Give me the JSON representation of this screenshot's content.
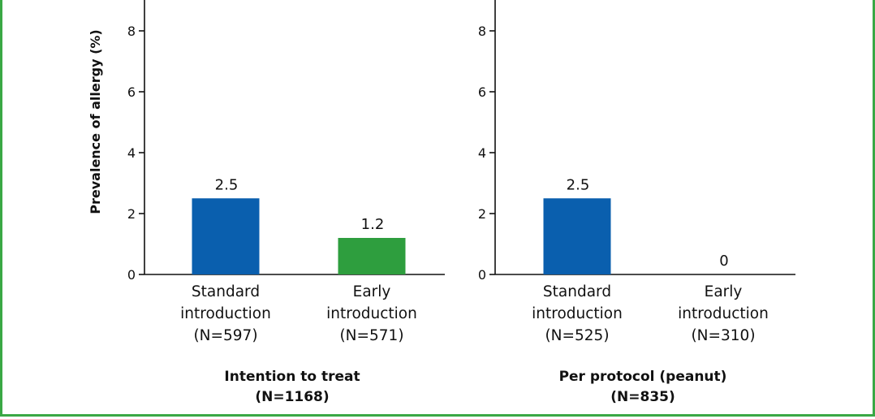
{
  "colors": {
    "frame": "#3aa845",
    "standard": "#0a5fae",
    "early": "#2e9e3e"
  },
  "ylabel": "Prevalence of allergy (%)",
  "chart_data": [
    {
      "type": "bar",
      "panel_title": [
        "Intention to treat",
        "(N=1168)"
      ],
      "categories": [
        [
          "Standard",
          "introduction",
          "(N=597)"
        ],
        [
          "Early",
          "introduction",
          "(N=571)"
        ]
      ],
      "values": [
        2.5,
        1.2
      ],
      "value_labels": [
        "2.5",
        "1.2"
      ],
      "ylim": [
        0,
        10
      ],
      "yticks": [
        0,
        2,
        4,
        6,
        8
      ],
      "ylabel": "Prevalence of allergy (%)"
    },
    {
      "type": "bar",
      "panel_title": [
        "Per protocol (peanut)",
        "(N=835)"
      ],
      "categories": [
        [
          "Standard",
          "introduction",
          "(N=525)"
        ],
        [
          "Early",
          "introduction",
          "(N=310)"
        ]
      ],
      "values": [
        2.5,
        0
      ],
      "value_labels": [
        "2.5",
        "0"
      ],
      "ylim": [
        0,
        10
      ],
      "yticks": [
        0,
        2,
        4,
        6,
        8
      ]
    }
  ]
}
